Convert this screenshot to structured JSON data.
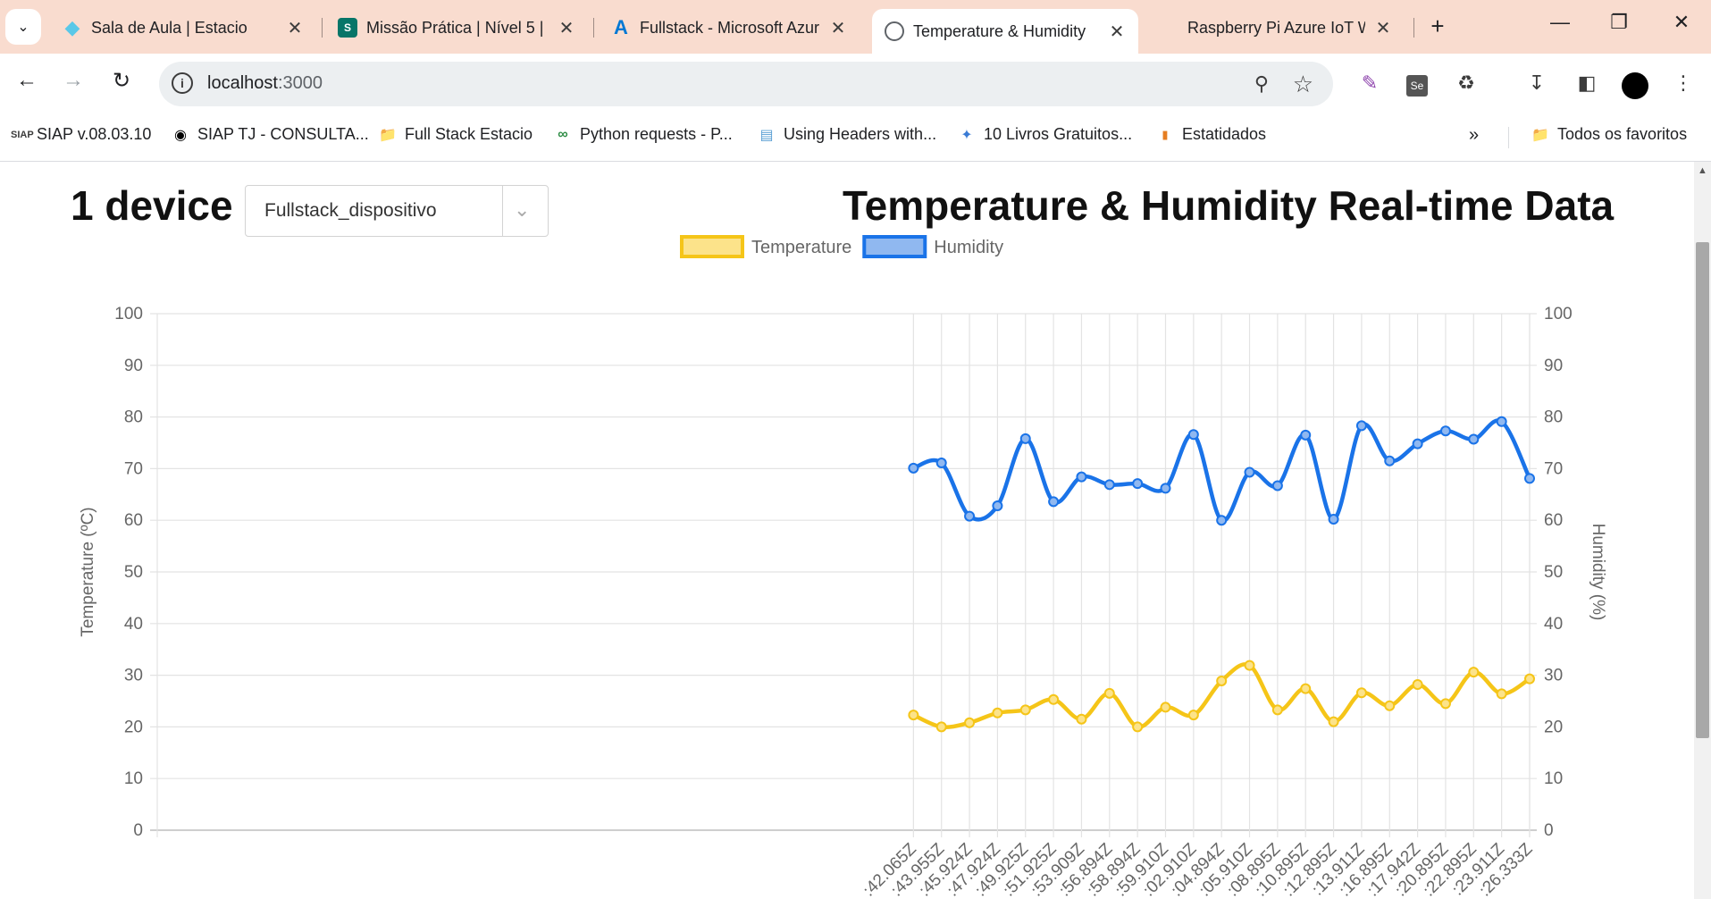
{
  "browser": {
    "tabs": [
      {
        "title": "Sala de Aula | Estacio",
        "icon": "diamond-icon",
        "color": "#5ac8e8"
      },
      {
        "title": "Missão Prática | Nível 5 |",
        "icon": "sharepoint-icon",
        "color": "#077568"
      },
      {
        "title": "Fullstack - Microsoft Azur",
        "icon": "azure-icon",
        "color": "#0078d4"
      },
      {
        "title": "Temperature & Humidity",
        "icon": "globe-icon",
        "color": "#5f6368"
      },
      {
        "title": "Raspberry Pi Azure IoT W",
        "icon": "microsoft-icon",
        "color": "#f25022"
      }
    ],
    "url_host": "localhost",
    "url_port": ":3000",
    "bookmarks": [
      {
        "label": "SIAP v.08.03.10",
        "icon": "siap-icon"
      },
      {
        "label": "SIAP TJ - CONSULTA...",
        "icon": "github-icon"
      },
      {
        "label": "Full Stack Estacio",
        "icon": "folder-icon"
      },
      {
        "label": "Python requests - P...",
        "icon": "geeks-icon"
      },
      {
        "label": "Using Headers with...",
        "icon": "page-icon"
      },
      {
        "label": "10 Livros Gratuitos...",
        "icon": "sparkle-icon"
      },
      {
        "label": "Estatidados",
        "icon": "bar-icon"
      }
    ],
    "all_bookmarks_label": "Todos os favoritos"
  },
  "page": {
    "device_count": "1 device",
    "device_selected": "Fullstack_dispositivo",
    "title": "Temperature & Humidity Real-time Data"
  },
  "chart_data": {
    "type": "line",
    "legend_position": "top-center",
    "grid": true,
    "x": [
      ":42.065Z",
      ":43.955Z",
      ":45.924Z",
      ":47.924Z",
      ":49.925Z",
      ":51.925Z",
      ":53.909Z",
      ":56.894Z",
      ":58.894Z",
      ":59.910Z",
      ":02.910Z",
      ":04.894Z",
      ":05.910Z",
      ":08.895Z",
      ":10.895Z",
      ":12.895Z",
      ":13.911Z",
      ":16.895Z",
      ":17.942Z",
      ":20.895Z",
      ":22.895Z",
      ":23.911Z",
      ":26.333Z"
    ],
    "x_slots": 50,
    "x_first_slot": 27,
    "y_left": {
      "label": "Temperature (ºC)",
      "range": [
        0,
        100
      ],
      "ticks": [
        0,
        10,
        20,
        30,
        40,
        50,
        60,
        70,
        80,
        90,
        100
      ]
    },
    "y_right": {
      "label": "Humidity (%)",
      "range": [
        0,
        100
      ],
      "ticks": [
        0,
        10,
        20,
        30,
        40,
        50,
        60,
        70,
        80,
        90,
        100
      ]
    },
    "series": [
      {
        "name": "Temperature",
        "color": "#f5c518",
        "fill": "#fce38a",
        "axis": "left",
        "values": [
          22.3,
          20.0,
          20.8,
          22.7,
          23.3,
          25.3,
          21.5,
          26.5,
          20.0,
          23.8,
          22.3,
          28.9,
          31.9,
          23.3,
          27.4,
          21.0,
          26.6,
          24.1,
          28.2,
          24.5,
          30.6,
          26.4,
          29.3
        ]
      },
      {
        "name": "Humidity",
        "color": "#1a73e8",
        "fill": "#90b8f0",
        "axis": "right",
        "values": [
          70.1,
          71.1,
          60.8,
          62.8,
          75.8,
          63.6,
          68.4,
          66.9,
          67.1,
          66.2,
          76.6,
          60.0,
          69.3,
          66.7,
          76.5,
          60.2,
          78.3,
          71.5,
          74.8,
          77.3,
          75.7,
          79.1,
          68.1
        ]
      }
    ]
  }
}
